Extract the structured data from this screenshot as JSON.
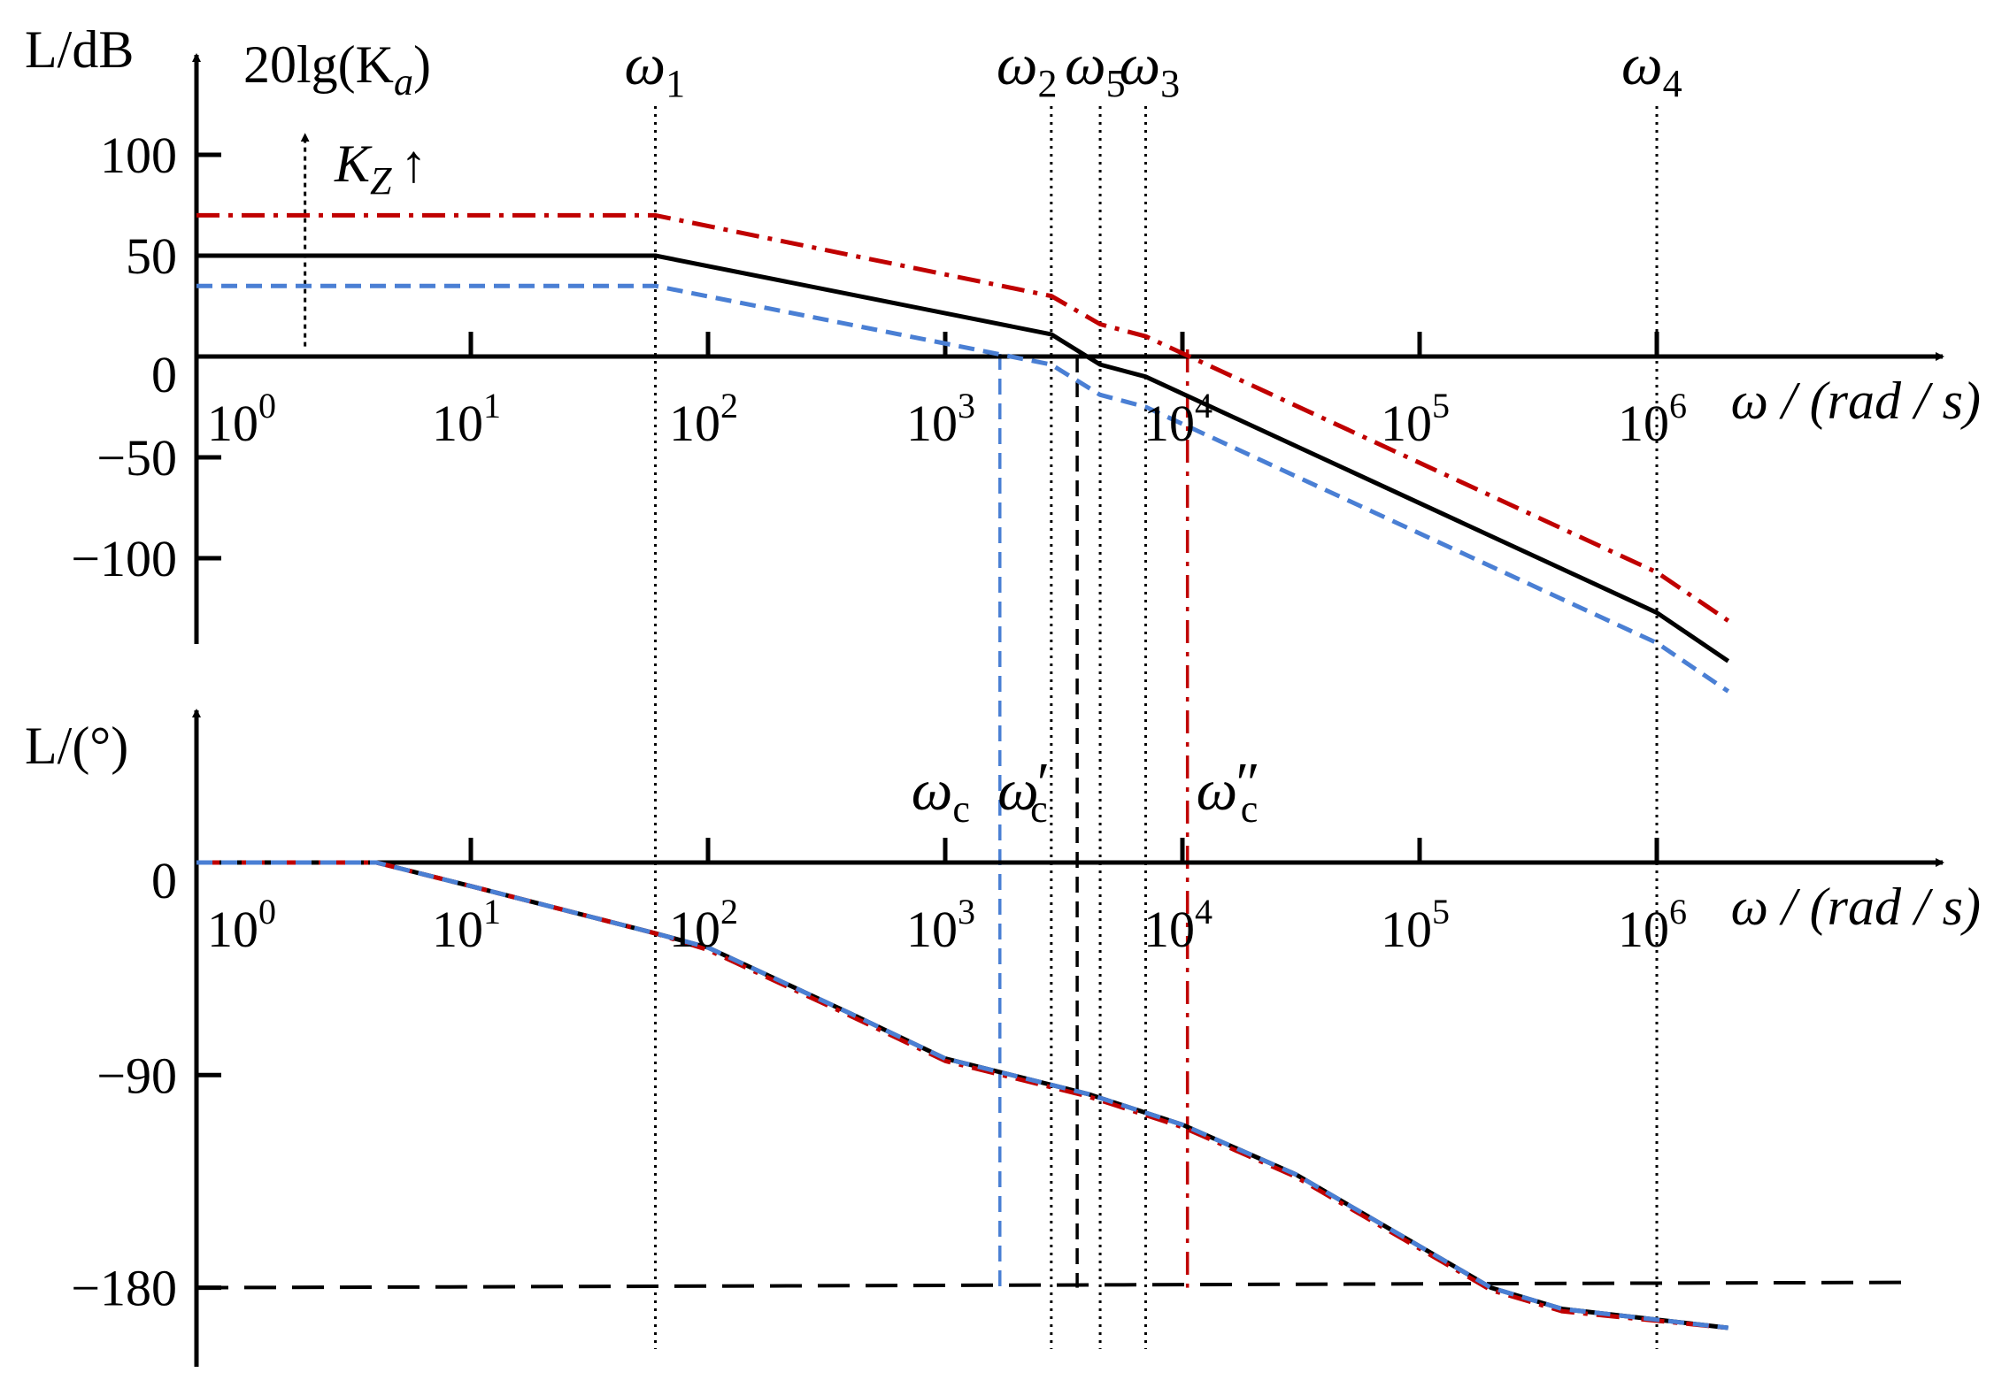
{
  "chart_data": [
    {
      "type": "line",
      "panel": "magnitude",
      "x_scale": "log",
      "xlim": [
        1,
        3000000
      ],
      "ylim": [
        -150,
        150
      ],
      "yticks": [
        100,
        50,
        0,
        -50,
        -100
      ],
      "ytick_labels": [
        "100",
        "50",
        "0",
        "−50",
        "−100"
      ],
      "xticks": [
        1,
        10,
        100,
        1000,
        10000,
        100000,
        1000000
      ],
      "xtick_labels": [
        [
          "10",
          "0"
        ],
        [
          "10",
          "1"
        ],
        [
          "10",
          "2"
        ],
        [
          "10",
          "3"
        ],
        [
          "10",
          "4"
        ],
        [
          "10",
          "5"
        ],
        [
          "10",
          "6"
        ]
      ],
      "ylabel": "L/dB",
      "xlabel": "ω / (rad / s)",
      "annotations": {
        "gain_label": "20lg(K",
        "gain_label_sub": "a",
        "gain_label_end": ")",
        "kz_label": "K",
        "kz_sub": "Z",
        "kz_arrow": "↑"
      },
      "corner_frequencies": [
        {
          "label": "ω",
          "sub": "1",
          "x": 60
        },
        {
          "label": "ω",
          "sub": "2",
          "x": 2800
        },
        {
          "label": "ω",
          "sub": "5",
          "x": 4500
        },
        {
          "label": "ω",
          "sub": "3",
          "x": 7000
        },
        {
          "label": "ω",
          "sub": "4",
          "x": 1000000
        }
      ],
      "series": [
        {
          "style": "solid",
          "color": "#000000",
          "points": [
            [
              0.5,
              50
            ],
            [
              60,
              50
            ],
            [
              2800,
              11
            ],
            [
              4500,
              -4
            ],
            [
              7000,
              -10
            ],
            [
              1000000,
              -127
            ],
            [
              2000000,
              -151
            ]
          ]
        },
        {
          "style": "dashdot",
          "color": "#c00000",
          "points": [
            [
              0.5,
              70
            ],
            [
              60,
              70
            ],
            [
              2800,
              30
            ],
            [
              4500,
              16
            ],
            [
              7000,
              10
            ],
            [
              1000000,
              -107
            ],
            [
              2000000,
              -131
            ]
          ]
        },
        {
          "style": "dashed",
          "color": "#4a7fd4",
          "points": [
            [
              0.5,
              35
            ],
            [
              60,
              35
            ],
            [
              2800,
              -4
            ],
            [
              4500,
              -19
            ],
            [
              7000,
              -25
            ],
            [
              1000000,
              -142
            ],
            [
              2000000,
              -166
            ]
          ]
        }
      ]
    },
    {
      "type": "line",
      "panel": "phase",
      "x_scale": "log",
      "xlim": [
        1,
        3000000
      ],
      "ylim": [
        -205,
        25
      ],
      "yticks": [
        0,
        -90,
        -180
      ],
      "ytick_labels": [
        "0",
        "−90",
        "−180"
      ],
      "xticks": [
        1,
        10,
        100,
        1000,
        10000,
        100000,
        1000000
      ],
      "xtick_labels": [
        [
          "10",
          "0"
        ],
        [
          "10",
          "1"
        ],
        [
          "10",
          "2"
        ],
        [
          "10",
          "3"
        ],
        [
          "10",
          "4"
        ],
        [
          "10",
          "5"
        ],
        [
          "10",
          "6"
        ]
      ],
      "ylabel": "L/(°)",
      "xlabel": "ω / (rad / s)",
      "reference_line": {
        "y": -180,
        "style": "longdash",
        "color": "#000000"
      },
      "crossover_frequencies": [
        {
          "label": "ω",
          "sub": "c",
          "prime": "",
          "x": 1700,
          "color": "#4a7fd4",
          "style": "dashed"
        },
        {
          "label": "ω",
          "sub": "c",
          "prime": "′",
          "x": 3600,
          "color": "#000000",
          "style": "dashed"
        },
        {
          "label": "ω",
          "sub": "c",
          "prime": "″",
          "x": 10500,
          "color": "#c00000",
          "style": "dashdot"
        }
      ],
      "series": [
        {
          "style": "solid",
          "color": "#000000",
          "points": [
            [
              0.5,
              0
            ],
            [
              2,
              0
            ],
            [
              4,
              0
            ],
            [
              10,
              -10
            ],
            [
              60,
              -30
            ],
            [
              100,
              -36
            ],
            [
              400,
              -64
            ],
            [
              1000,
              -83
            ],
            [
              4000,
              -98
            ],
            [
              10000,
              -111
            ],
            [
              30000,
              -132
            ],
            [
              200000,
              -180
            ],
            [
              400000,
              -189
            ],
            [
              2000000,
              -197
            ]
          ]
        },
        {
          "style": "dashdot",
          "color": "#c00000",
          "points": [
            [
              0.5,
              0
            ],
            [
              2,
              0
            ],
            [
              4,
              0
            ],
            [
              10,
              -10
            ],
            [
              60,
              -30
            ],
            [
              100,
              -37
            ],
            [
              400,
              -65
            ],
            [
              1000,
              -84
            ],
            [
              4000,
              -99
            ],
            [
              10000,
              -112
            ],
            [
              30000,
              -133
            ],
            [
              200000,
              -181
            ],
            [
              400000,
              -190
            ],
            [
              2000000,
              -197
            ]
          ]
        },
        {
          "style": "dashed",
          "color": "#4a7fd4",
          "points": [
            [
              0.5,
              0
            ],
            [
              2,
              0
            ],
            [
              4,
              0
            ],
            [
              10,
              -10
            ],
            [
              60,
              -30
            ],
            [
              100,
              -36
            ],
            [
              400,
              -64
            ],
            [
              1000,
              -83
            ],
            [
              4000,
              -98
            ],
            [
              10000,
              -111
            ],
            [
              30000,
              -132
            ],
            [
              200000,
              -180
            ],
            [
              400000,
              -189
            ],
            [
              2000000,
              -197
            ]
          ]
        }
      ]
    }
  ]
}
